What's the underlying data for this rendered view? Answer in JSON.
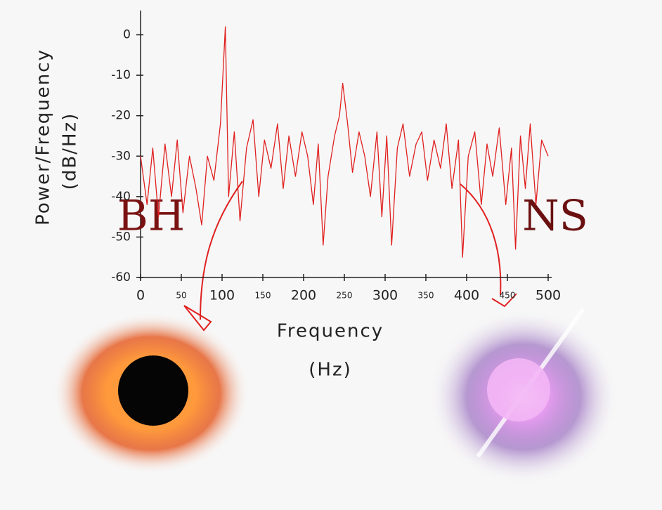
{
  "chart_data": {
    "type": "line",
    "xlabel": "Frequency",
    "xlabel_unit": "(Hz)",
    "ylabel": "Power/Frequency",
    "ylabel_unit": "(dB/Hz)",
    "annotations": [
      "BH",
      "NS"
    ],
    "xlim": [
      0,
      500
    ],
    "ylim": [
      -60,
      6
    ],
    "xticks": [
      0,
      50,
      100,
      150,
      200,
      250,
      300,
      350,
      400,
      450,
      500
    ],
    "yticks": [
      0,
      -10,
      -20,
      -30,
      -40,
      -50,
      -60
    ],
    "grid": false,
    "series": [
      {
        "color": "#e02020",
        "x": [
          0,
          8,
          15,
          22,
          30,
          38,
          45,
          52,
          60,
          68,
          75,
          82,
          90,
          98,
          104,
          108,
          115,
          122,
          130,
          138,
          145,
          152,
          160,
          168,
          175,
          182,
          190,
          198,
          205,
          212,
          218,
          224,
          230,
          238,
          244,
          248,
          254,
          260,
          268,
          275,
          282,
          290,
          296,
          302,
          308,
          315,
          322,
          330,
          338,
          345,
          352,
          360,
          368,
          375,
          382,
          390,
          395,
          402,
          410,
          418,
          425,
          432,
          440,
          448,
          455,
          460,
          466,
          472,
          478,
          485,
          492,
          500
        ],
        "values": [
          -30,
          -42,
          -28,
          -45,
          -27,
          -40,
          -26,
          -44,
          -30,
          -38,
          -47,
          -30,
          -36,
          -22,
          2,
          -40,
          -24,
          -46,
          -28,
          -21,
          -40,
          -26,
          -33,
          -22,
          -38,
          -25,
          -35,
          -24,
          -30,
          -42,
          -27,
          -52,
          -35,
          -25,
          -20,
          -12,
          -22,
          -34,
          -24,
          -30,
          -40,
          -24,
          -45,
          -25,
          -52,
          -28,
          -22,
          -35,
          -27,
          -24,
          -36,
          -26,
          -33,
          -22,
          -38,
          -26,
          -55,
          -30,
          -24,
          -42,
          -27,
          -35,
          -23,
          -42,
          -28,
          -53,
          -25,
          -38,
          -22,
          -42,
          -26,
          -30
        ]
      }
    ]
  }
}
